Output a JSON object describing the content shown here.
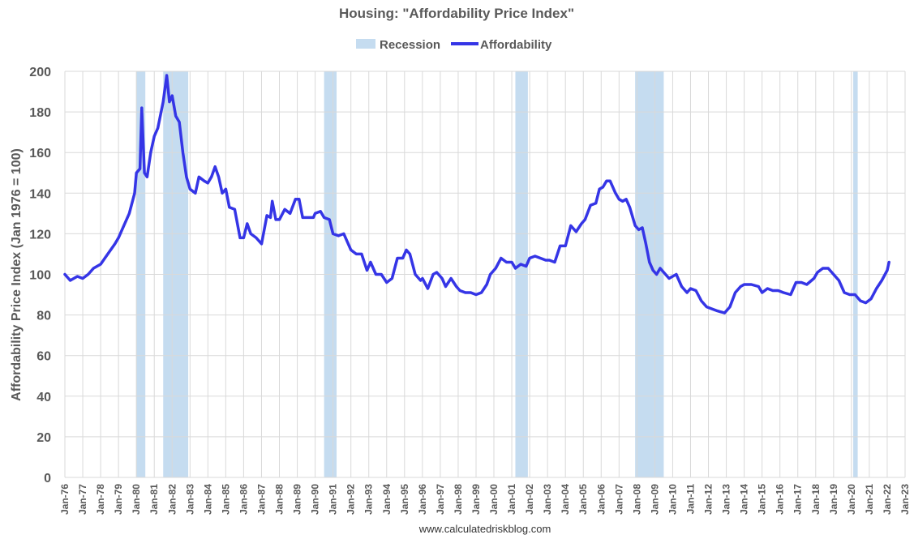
{
  "chart_data": {
    "type": "line",
    "title": "Housing: \"Affordability Price Index\"",
    "ylabel": "Affordability Price Index (Jan 1976 = 100)",
    "xlabel": "",
    "source": "www.calculatedriskblog.com",
    "ylim": [
      0,
      200
    ],
    "yticks": [
      0,
      20,
      40,
      60,
      80,
      100,
      120,
      140,
      160,
      180,
      200
    ],
    "xlim": [
      1976.0,
      2023.0
    ],
    "xticks": [
      "Jan-76",
      "Jan-77",
      "Jan-78",
      "Jan-79",
      "Jan-80",
      "Jan-81",
      "Jan-82",
      "Jan-83",
      "Jan-84",
      "Jan-85",
      "Jan-86",
      "Jan-87",
      "Jan-88",
      "Jan-89",
      "Jan-90",
      "Jan-91",
      "Jan-92",
      "Jan-93",
      "Jan-94",
      "Jan-95",
      "Jan-96",
      "Jan-97",
      "Jan-98",
      "Jan-99",
      "Jan-00",
      "Jan-01",
      "Jan-02",
      "Jan-03",
      "Jan-04",
      "Jan-05",
      "Jan-06",
      "Jan-07",
      "Jan-08",
      "Jan-09",
      "Jan-10",
      "Jan-11",
      "Jan-12",
      "Jan-13",
      "Jan-14",
      "Jan-15",
      "Jan-16",
      "Jan-17",
      "Jan-18",
      "Jan-19",
      "Jan-20",
      "Jan-21",
      "Jan-22",
      "Jan-23"
    ],
    "grid": true,
    "legend_position": "top-center",
    "colors": {
      "line": "#3535e6",
      "recession": "#c5dcf0",
      "grid": "#d9d9d9",
      "text": "#595959"
    },
    "recessions": [
      {
        "start": 1980.0,
        "end": 1980.5
      },
      {
        "start": 1981.5,
        "end": 1982.9
      },
      {
        "start": 1990.5,
        "end": 1991.2
      },
      {
        "start": 2001.2,
        "end": 2001.9
      },
      {
        "start": 2007.9,
        "end": 2009.5
      },
      {
        "start": 2020.1,
        "end": 2020.35
      }
    ],
    "series": [
      {
        "name": "Recession",
        "kind": "band"
      },
      {
        "name": "Affordability",
        "kind": "line",
        "points": [
          [
            1976.0,
            100
          ],
          [
            1976.3,
            97
          ],
          [
            1976.7,
            99
          ],
          [
            1977.0,
            98
          ],
          [
            1977.3,
            100
          ],
          [
            1977.6,
            103
          ],
          [
            1978.0,
            105
          ],
          [
            1978.4,
            110
          ],
          [
            1978.8,
            115
          ],
          [
            1979.0,
            118
          ],
          [
            1979.3,
            124
          ],
          [
            1979.6,
            130
          ],
          [
            1979.9,
            140
          ],
          [
            1980.0,
            150
          ],
          [
            1980.2,
            152
          ],
          [
            1980.3,
            182
          ],
          [
            1980.45,
            150
          ],
          [
            1980.6,
            148
          ],
          [
            1980.8,
            160
          ],
          [
            1981.0,
            168
          ],
          [
            1981.2,
            172
          ],
          [
            1981.5,
            185
          ],
          [
            1981.7,
            198
          ],
          [
            1981.85,
            185
          ],
          [
            1982.0,
            188
          ],
          [
            1982.2,
            178
          ],
          [
            1982.4,
            175
          ],
          [
            1982.6,
            160
          ],
          [
            1982.8,
            148
          ],
          [
            1983.0,
            142
          ],
          [
            1983.3,
            140
          ],
          [
            1983.5,
            148
          ],
          [
            1983.8,
            146
          ],
          [
            1984.0,
            145
          ],
          [
            1984.2,
            148
          ],
          [
            1984.4,
            153
          ],
          [
            1984.6,
            148
          ],
          [
            1984.8,
            140
          ],
          [
            1985.0,
            142
          ],
          [
            1985.2,
            133
          ],
          [
            1985.5,
            132
          ],
          [
            1985.8,
            118
          ],
          [
            1986.0,
            118
          ],
          [
            1986.2,
            125
          ],
          [
            1986.4,
            120
          ],
          [
            1986.7,
            118
          ],
          [
            1987.0,
            115
          ],
          [
            1987.3,
            129
          ],
          [
            1987.5,
            128
          ],
          [
            1987.6,
            136
          ],
          [
            1987.8,
            127
          ],
          [
            1988.0,
            127
          ],
          [
            1988.3,
            132
          ],
          [
            1988.6,
            130
          ],
          [
            1988.9,
            137
          ],
          [
            1989.1,
            137
          ],
          [
            1989.3,
            128
          ],
          [
            1989.6,
            128
          ],
          [
            1989.9,
            128
          ],
          [
            1990.0,
            130
          ],
          [
            1990.3,
            131
          ],
          [
            1990.5,
            128
          ],
          [
            1990.8,
            127
          ],
          [
            1991.0,
            120
          ],
          [
            1991.3,
            119
          ],
          [
            1991.6,
            120
          ],
          [
            1991.8,
            116
          ],
          [
            1992.0,
            112
          ],
          [
            1992.3,
            110
          ],
          [
            1992.6,
            110
          ],
          [
            1992.9,
            102
          ],
          [
            1993.1,
            106
          ],
          [
            1993.4,
            100
          ],
          [
            1993.7,
            100
          ],
          [
            1994.0,
            96
          ],
          [
            1994.3,
            98
          ],
          [
            1994.6,
            108
          ],
          [
            1994.9,
            108
          ],
          [
            1995.1,
            112
          ],
          [
            1995.3,
            110
          ],
          [
            1995.6,
            100
          ],
          [
            1995.9,
            97
          ],
          [
            1996.0,
            98
          ],
          [
            1996.3,
            93
          ],
          [
            1996.6,
            100
          ],
          [
            1996.8,
            101
          ],
          [
            1997.1,
            98
          ],
          [
            1997.3,
            94
          ],
          [
            1997.6,
            98
          ],
          [
            1997.9,
            94
          ],
          [
            1998.1,
            92
          ],
          [
            1998.4,
            91
          ],
          [
            1998.7,
            91
          ],
          [
            1999.0,
            90
          ],
          [
            1999.3,
            91
          ],
          [
            1999.6,
            95
          ],
          [
            1999.8,
            100
          ],
          [
            2000.1,
            103
          ],
          [
            2000.4,
            108
          ],
          [
            2000.7,
            106
          ],
          [
            2001.0,
            106
          ],
          [
            2001.2,
            103
          ],
          [
            2001.5,
            105
          ],
          [
            2001.8,
            104
          ],
          [
            2002.0,
            108
          ],
          [
            2002.3,
            109
          ],
          [
            2002.6,
            108
          ],
          [
            2002.9,
            107
          ],
          [
            2003.1,
            107
          ],
          [
            2003.4,
            106
          ],
          [
            2003.7,
            114
          ],
          [
            2004.0,
            114
          ],
          [
            2004.3,
            124
          ],
          [
            2004.6,
            121
          ],
          [
            2004.9,
            125
          ],
          [
            2005.1,
            127
          ],
          [
            2005.4,
            134
          ],
          [
            2005.7,
            135
          ],
          [
            2005.9,
            142
          ],
          [
            2006.1,
            143
          ],
          [
            2006.3,
            146
          ],
          [
            2006.5,
            146
          ],
          [
            2006.8,
            140
          ],
          [
            2007.0,
            137
          ],
          [
            2007.2,
            136
          ],
          [
            2007.4,
            137
          ],
          [
            2007.6,
            133
          ],
          [
            2007.9,
            124
          ],
          [
            2008.1,
            122
          ],
          [
            2008.3,
            123
          ],
          [
            2008.5,
            115
          ],
          [
            2008.7,
            106
          ],
          [
            2008.9,
            102
          ],
          [
            2009.1,
            100
          ],
          [
            2009.3,
            103
          ],
          [
            2009.5,
            101
          ],
          [
            2009.8,
            98
          ],
          [
            2010.0,
            99
          ],
          [
            2010.2,
            100
          ],
          [
            2010.5,
            94
          ],
          [
            2010.8,
            91
          ],
          [
            2011.0,
            93
          ],
          [
            2011.3,
            92
          ],
          [
            2011.6,
            87
          ],
          [
            2011.9,
            84
          ],
          [
            2012.2,
            83
          ],
          [
            2012.5,
            82
          ],
          [
            2012.9,
            81
          ],
          [
            2013.2,
            84
          ],
          [
            2013.5,
            91
          ],
          [
            2013.8,
            94
          ],
          [
            2014.0,
            95
          ],
          [
            2014.4,
            95
          ],
          [
            2014.8,
            94
          ],
          [
            2015.0,
            91
          ],
          [
            2015.3,
            93
          ],
          [
            2015.6,
            92
          ],
          [
            2015.9,
            92
          ],
          [
            2016.2,
            91
          ],
          [
            2016.6,
            90
          ],
          [
            2016.9,
            96
          ],
          [
            2017.2,
            96
          ],
          [
            2017.5,
            95
          ],
          [
            2017.9,
            98
          ],
          [
            2018.1,
            101
          ],
          [
            2018.4,
            103
          ],
          [
            2018.7,
            103
          ],
          [
            2019.0,
            100
          ],
          [
            2019.3,
            97
          ],
          [
            2019.6,
            91
          ],
          [
            2019.9,
            90
          ],
          [
            2020.2,
            90
          ],
          [
            2020.5,
            87
          ],
          [
            2020.8,
            86
          ],
          [
            2021.1,
            88
          ],
          [
            2021.4,
            93
          ],
          [
            2021.7,
            97
          ],
          [
            2022.0,
            102
          ],
          [
            2022.1,
            106
          ]
        ]
      }
    ]
  }
}
